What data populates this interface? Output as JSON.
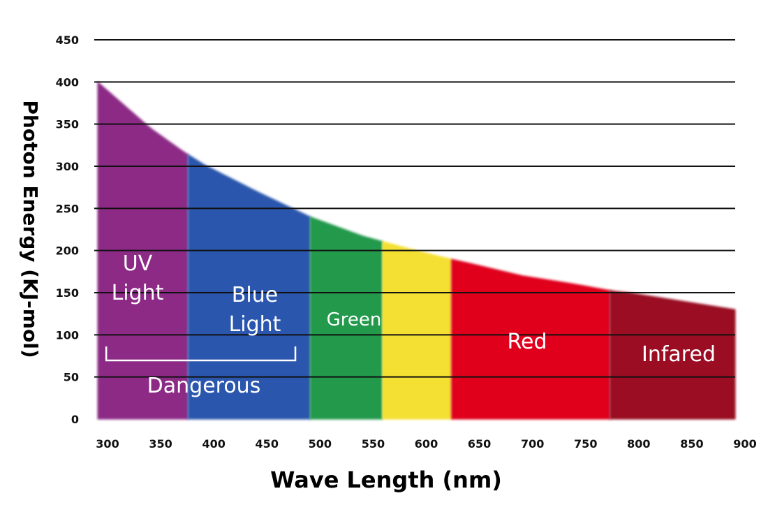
{
  "chart_data": {
    "type": "area",
    "xlabel": "Wave Length (nm)",
    "ylabel": "Photon Energy (KJ-mol)",
    "xlim": [
      300,
      900
    ],
    "ylim": [
      0,
      450
    ],
    "x_ticks": [
      300,
      350,
      400,
      450,
      500,
      550,
      600,
      650,
      700,
      750,
      800,
      850,
      900
    ],
    "y_ticks": [
      0,
      50,
      100,
      150,
      200,
      250,
      300,
      350,
      400,
      450
    ],
    "grid": "horizontal",
    "curve": {
      "x": [
        300,
        350,
        380,
        400,
        450,
        500,
        550,
        585,
        600,
        635,
        650,
        700,
        750,
        785,
        800,
        850,
        900
      ],
      "y": [
        400,
        345,
        318,
        302,
        270,
        240,
        217,
        205,
        200,
        189,
        185,
        170,
        160,
        152,
        150,
        140,
        130
      ]
    },
    "regions": [
      {
        "label": "UV\nLight",
        "from": 300,
        "to": 385,
        "color": "#8c2a86"
      },
      {
        "label": "Blue\nLight",
        "from": 385,
        "to": 500,
        "color": "#2c56ad"
      },
      {
        "label": "Green",
        "from": 500,
        "to": 568,
        "color": "#23994c"
      },
      {
        "label": "",
        "from": 568,
        "to": 633,
        "color": "#f4e032"
      },
      {
        "label": "Red",
        "from": 633,
        "to": 782,
        "color": "#e0001f"
      },
      {
        "label": "Infared",
        "from": 782,
        "to": 900,
        "color": "#9a0c22"
      }
    ],
    "annotations": [
      {
        "text": "Dangerous",
        "bracket_from": 308,
        "bracket_to": 486
      }
    ]
  }
}
